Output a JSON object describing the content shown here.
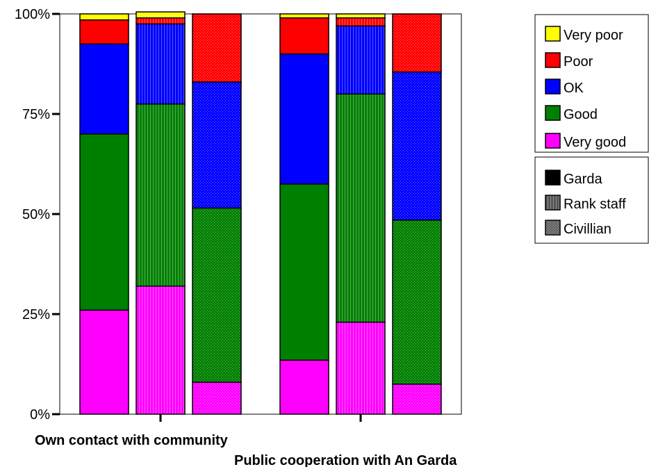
{
  "chart_data": {
    "type": "bar",
    "stacked": true,
    "percent": true,
    "categories": [
      "Own contact with community",
      "Public cooperation with An Garda"
    ],
    "groups": [
      "Garda",
      "Rank staff",
      "Civillian"
    ],
    "series": [
      {
        "name": "Very good",
        "color": "#ff00ff",
        "values": [
          [
            26,
            32,
            8
          ],
          [
            13.5,
            23,
            7.5
          ]
        ]
      },
      {
        "name": "Good",
        "color": "#008000",
        "values": [
          [
            44,
            45.5,
            43.5
          ],
          [
            44,
            57,
            41
          ]
        ]
      },
      {
        "name": "OK",
        "color": "#0000ff",
        "values": [
          [
            22.5,
            20,
            31.5
          ],
          [
            32.5,
            17,
            37
          ]
        ]
      },
      {
        "name": "Poor",
        "color": "#ff0000",
        "values": [
          [
            6,
            1.5,
            17
          ],
          [
            9,
            2,
            14.5
          ]
        ]
      },
      {
        "name": "Very poor",
        "color": "#ffff00",
        "values": [
          [
            1.5,
            1.5,
            0
          ],
          [
            1,
            1,
            0
          ]
        ]
      }
    ],
    "ylim": [
      0,
      100
    ],
    "yticks": [
      "0%",
      "25%",
      "50%",
      "75%",
      "100%"
    ],
    "legend_position": "right",
    "grid": false
  }
}
